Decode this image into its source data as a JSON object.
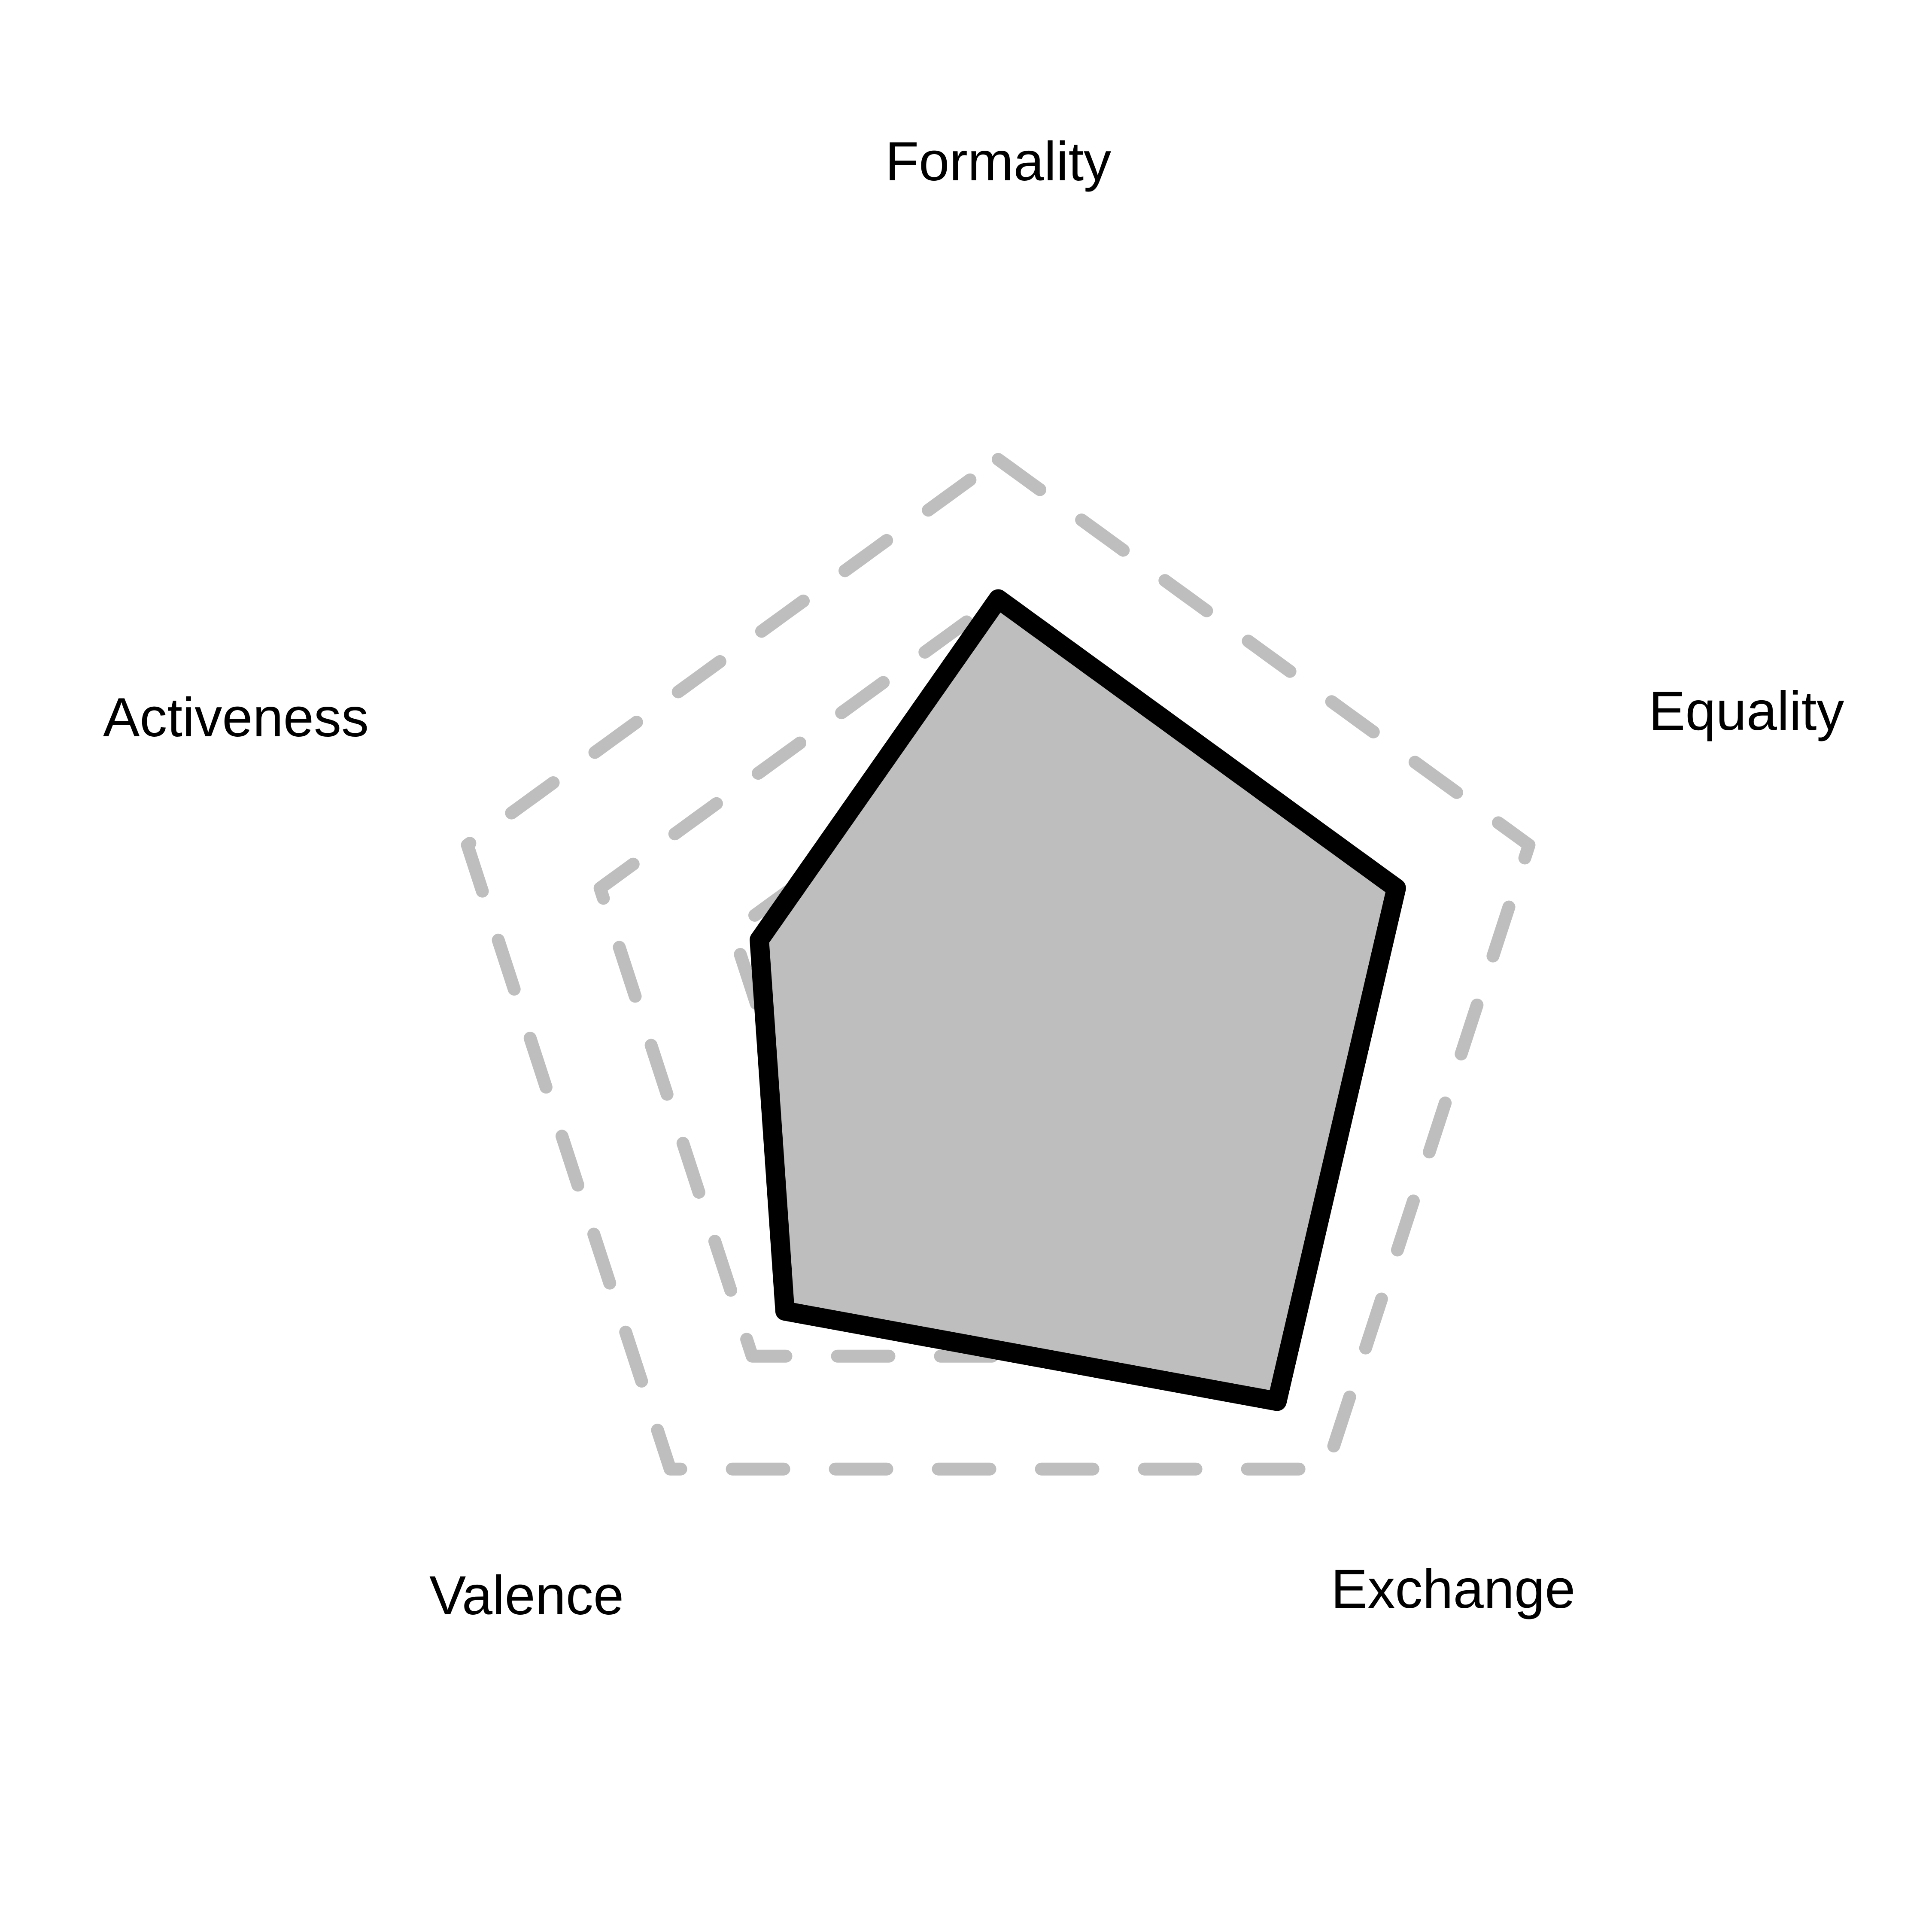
{
  "chart_data": {
    "type": "radar",
    "axes": [
      "Formality",
      "Equality",
      "Exchange",
      "Valence",
      "Activeness"
    ],
    "series": [
      {
        "name": "profile",
        "values": [
          0.75,
          0.75,
          0.85,
          0.65,
          0.45
        ]
      }
    ],
    "gridlines": [
      0.5,
      0.75,
      1.0
    ],
    "range": [
      0,
      1
    ],
    "grid_style": "dashed",
    "colors": {
      "grid": "#bebebe",
      "fill": "#bebebe",
      "outline": "#000000",
      "label": "#000000"
    }
  }
}
